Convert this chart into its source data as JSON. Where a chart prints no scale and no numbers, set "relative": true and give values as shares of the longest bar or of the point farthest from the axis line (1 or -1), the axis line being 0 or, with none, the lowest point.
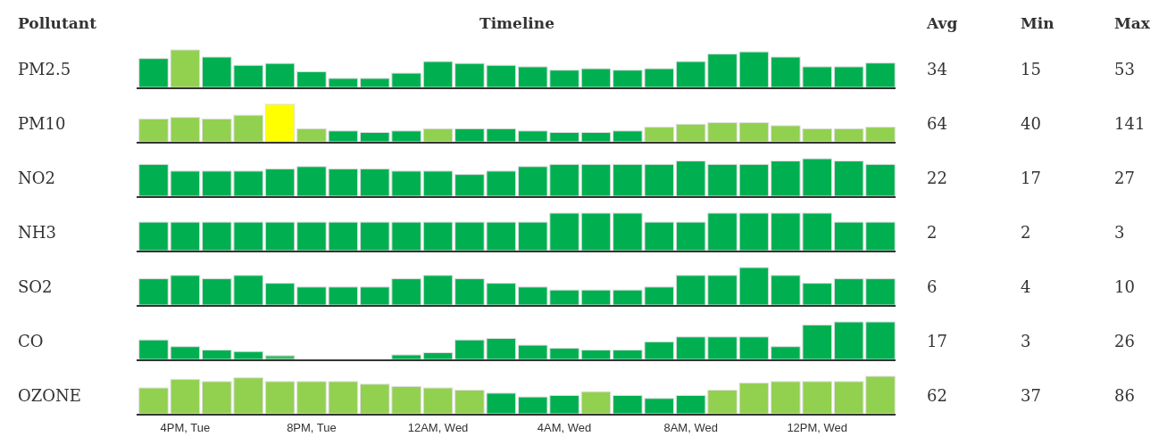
{
  "chart_data": [
    {
      "type": "other",
      "annotations": [
        "Pollutant",
        "Timeline",
        "Avg",
        "Min",
        "Max"
      ]
    },
    {
      "type": "bar",
      "title": "PM2.5",
      "relative": true,
      "categories": [
        null,
        null,
        null,
        null,
        null,
        null,
        null,
        null,
        null,
        null,
        null,
        null,
        null,
        null,
        null,
        null,
        null,
        null,
        null,
        null,
        null,
        null,
        null,
        null
      ],
      "values": [
        0.77,
        1,
        0.81,
        0.59,
        0.64,
        0.42,
        0.24,
        0.24,
        0.38,
        0.69,
        0.64,
        0.59,
        0.55,
        0.46,
        0.5,
        0.46,
        0.5,
        0.69,
        0.89,
        0.95,
        0.81,
        0.55,
        0.55,
        0.65
      ],
      "colors": [
        "#00b050",
        "#92d050",
        "#00b050",
        "#00b050",
        "#00b050",
        "#00b050",
        "#00b050",
        "#00b050",
        "#00b050",
        "#00b050",
        "#00b050",
        "#00b050",
        "#00b050",
        "#00b050",
        "#00b050",
        "#00b050",
        "#00b050",
        "#00b050",
        "#00b050",
        "#00b050",
        "#00b050",
        "#00b050",
        "#00b050",
        "#00b050"
      ],
      "annotations": [
        "34",
        "15",
        "53"
      ]
    },
    {
      "type": "bar",
      "title": "PM10",
      "relative": true,
      "categories": [
        null,
        null,
        null,
        null,
        null,
        null,
        null,
        null,
        null,
        null,
        null,
        null,
        null,
        null,
        null,
        null,
        null,
        null,
        null,
        null,
        null,
        null,
        null,
        null
      ],
      "values": [
        0.61,
        0.65,
        0.61,
        0.71,
        1,
        0.35,
        0.29,
        0.25,
        0.29,
        0.35,
        0.35,
        0.35,
        0.29,
        0.25,
        0.25,
        0.29,
        0.39,
        0.47,
        0.51,
        0.51,
        0.43,
        0.35,
        0.35,
        0.39
      ],
      "colors": [
        "#92d050",
        "#92d050",
        "#92d050",
        "#92d050",
        "#ffff00",
        "#92d050",
        "#00b050",
        "#00b050",
        "#00b050",
        "#92d050",
        "#00b050",
        "#00b050",
        "#00b050",
        "#00b050",
        "#00b050",
        "#00b050",
        "#92d050",
        "#92d050",
        "#92d050",
        "#92d050",
        "#92d050",
        "#92d050",
        "#92d050",
        "#92d050"
      ],
      "annotations": [
        "64",
        "40",
        "141"
      ]
    },
    {
      "type": "bar",
      "title": "NO2",
      "relative": true,
      "categories": [
        null,
        null,
        null,
        null,
        null,
        null,
        null,
        null,
        null,
        null,
        null,
        null,
        null,
        null,
        null,
        null,
        null,
        null,
        null,
        null,
        null,
        null,
        null,
        null
      ],
      "values": [
        0.85,
        0.67,
        0.67,
        0.67,
        0.73,
        0.79,
        0.73,
        0.73,
        0.67,
        0.67,
        0.58,
        0.67,
        0.79,
        0.85,
        0.85,
        0.85,
        0.85,
        0.94,
        0.85,
        0.85,
        0.94,
        1,
        0.94,
        0.85
      ],
      "colors": [
        "#00b050",
        "#00b050",
        "#00b050",
        "#00b050",
        "#00b050",
        "#00b050",
        "#00b050",
        "#00b050",
        "#00b050",
        "#00b050",
        "#00b050",
        "#00b050",
        "#00b050",
        "#00b050",
        "#00b050",
        "#00b050",
        "#00b050",
        "#00b050",
        "#00b050",
        "#00b050",
        "#00b050",
        "#00b050",
        "#00b050",
        "#00b050"
      ],
      "annotations": [
        "22",
        "17",
        "27"
      ]
    },
    {
      "type": "bar",
      "title": "NH3",
      "relative": true,
      "categories": [
        null,
        null,
        null,
        null,
        null,
        null,
        null,
        null,
        null,
        null,
        null,
        null,
        null,
        null,
        null,
        null,
        null,
        null,
        null,
        null,
        null,
        null,
        null,
        null
      ],
      "values": [
        0.76,
        0.76,
        0.76,
        0.76,
        0.76,
        0.76,
        0.76,
        0.76,
        0.76,
        0.76,
        0.76,
        0.76,
        0.76,
        1,
        1,
        1,
        0.76,
        0.76,
        1,
        1,
        1,
        1,
        0.76,
        0.76
      ],
      "colors": [
        "#00b050",
        "#00b050",
        "#00b050",
        "#00b050",
        "#00b050",
        "#00b050",
        "#00b050",
        "#00b050",
        "#00b050",
        "#00b050",
        "#00b050",
        "#00b050",
        "#00b050",
        "#00b050",
        "#00b050",
        "#00b050",
        "#00b050",
        "#00b050",
        "#00b050",
        "#00b050",
        "#00b050",
        "#00b050",
        "#00b050",
        "#00b050"
      ],
      "annotations": [
        "2",
        "2",
        "3"
      ]
    },
    {
      "type": "bar",
      "title": "SO2",
      "relative": true,
      "categories": [
        null,
        null,
        null,
        null,
        null,
        null,
        null,
        null,
        null,
        null,
        null,
        null,
        null,
        null,
        null,
        null,
        null,
        null,
        null,
        null,
        null,
        null,
        null,
        null
      ],
      "values": [
        0.7,
        0.79,
        0.7,
        0.79,
        0.58,
        0.48,
        0.48,
        0.48,
        0.7,
        0.79,
        0.7,
        0.58,
        0.48,
        0.4,
        0.4,
        0.4,
        0.48,
        0.79,
        0.79,
        1,
        0.79,
        0.58,
        0.7,
        0.7
      ],
      "colors": [
        "#00b050",
        "#00b050",
        "#00b050",
        "#00b050",
        "#00b050",
        "#00b050",
        "#00b050",
        "#00b050",
        "#00b050",
        "#00b050",
        "#00b050",
        "#00b050",
        "#00b050",
        "#00b050",
        "#00b050",
        "#00b050",
        "#00b050",
        "#00b050",
        "#00b050",
        "#00b050",
        "#00b050",
        "#00b050",
        "#00b050",
        "#00b050"
      ],
      "annotations": [
        "6",
        "4",
        "10"
      ]
    },
    {
      "type": "bar",
      "title": "CO",
      "relative": true,
      "categories": [
        null,
        null,
        null,
        null,
        null,
        null,
        null,
        null,
        null,
        null,
        null,
        null,
        null,
        null,
        null,
        null,
        null,
        null,
        null,
        null,
        null,
        null,
        null,
        null
      ],
      "values": [
        0.52,
        0.34,
        0.25,
        0.21,
        0.1,
        null,
        null,
        null,
        0.12,
        0.18,
        0.52,
        0.56,
        0.38,
        0.3,
        0.25,
        0.25,
        0.47,
        0.6,
        0.6,
        0.6,
        0.34,
        0.92,
        1,
        1
      ],
      "colors": [
        "#00b050",
        "#00b050",
        "#00b050",
        "#00b050",
        "#3fb86a",
        null,
        null,
        null,
        "#00b050",
        "#00b050",
        "#00b050",
        "#00b050",
        "#00b050",
        "#00b050",
        "#00b050",
        "#00b050",
        "#00b050",
        "#00b050",
        "#00b050",
        "#00b050",
        "#00b050",
        "#00b050",
        "#00b050",
        "#00b050"
      ],
      "annotations": [
        "17",
        "3",
        "26"
      ]
    },
    {
      "type": "bar",
      "title": "OZONE",
      "relative": true,
      "categories": [
        null,
        "4PM, Tue",
        null,
        null,
        null,
        "8PM, Tue",
        null,
        null,
        null,
        "12AM, Wed",
        null,
        null,
        null,
        "4AM, Wed",
        null,
        null,
        null,
        "8AM, Wed",
        null,
        null,
        null,
        "12PM, Wed",
        null,
        null
      ],
      "values": [
        0.69,
        0.92,
        0.86,
        0.96,
        0.86,
        0.86,
        0.86,
        0.79,
        0.73,
        0.69,
        0.63,
        0.55,
        0.45,
        0.49,
        0.59,
        0.49,
        0.41,
        0.49,
        0.63,
        0.82,
        0.86,
        0.86,
        0.86,
        1
      ],
      "colors": [
        "#92d050",
        "#92d050",
        "#92d050",
        "#92d050",
        "#92d050",
        "#92d050",
        "#92d050",
        "#92d050",
        "#92d050",
        "#92d050",
        "#92d050",
        "#00b050",
        "#00b050",
        "#00b050",
        "#92d050",
        "#00b050",
        "#00b050",
        "#00b050",
        "#92d050",
        "#92d050",
        "#92d050",
        "#92d050",
        "#92d050",
        "#92d050"
      ],
      "annotations": [
        "62",
        "37",
        "86"
      ]
    }
  ]
}
